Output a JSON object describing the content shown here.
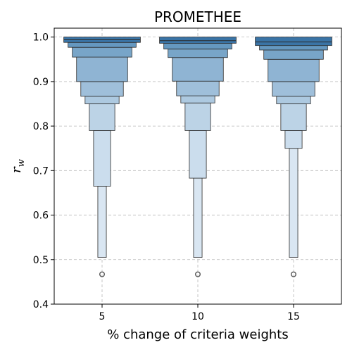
{
  "chart_data": {
    "type": "boxenplot",
    "title": "PROMETHEE",
    "xlabel": "% change of criteria weights",
    "ylabel_main": "r",
    "ylabel_sub": "w",
    "ylim": [
      0.4,
      1.02
    ],
    "yticks": [
      "0.4",
      "0.5",
      "0.6",
      "0.7",
      "0.8",
      "0.9",
      "1.0"
    ],
    "categories": [
      "5",
      "10",
      "15"
    ],
    "grid": true,
    "series": [
      {
        "category": "5",
        "median": 0.994,
        "boxes": [
          {
            "lo": 0.988,
            "hi": 1.0,
            "color": "#3a74a6"
          },
          {
            "lo": 0.977,
            "hi": 0.988,
            "color": "#6598c0"
          },
          {
            "lo": 0.955,
            "hi": 0.977,
            "color": "#78a5c8"
          },
          {
            "lo": 0.9,
            "hi": 0.955,
            "color": "#8fb4d3"
          },
          {
            "lo": 0.867,
            "hi": 0.9,
            "color": "#9fbfda"
          },
          {
            "lo": 0.85,
            "hi": 0.867,
            "color": "#adc9e0"
          },
          {
            "lo": 0.79,
            "hi": 0.85,
            "color": "#bcd3e6"
          },
          {
            "lo": 0.665,
            "hi": 0.79,
            "color": "#cbdded"
          },
          {
            "lo": 0.505,
            "hi": 0.665,
            "color": "#d9e6f2"
          }
        ],
        "outliers": [
          0.467
        ]
      },
      {
        "category": "10",
        "median": 0.992,
        "boxes": [
          {
            "lo": 0.986,
            "hi": 1.0,
            "color": "#3a74a6"
          },
          {
            "lo": 0.973,
            "hi": 0.986,
            "color": "#6598c0"
          },
          {
            "lo": 0.954,
            "hi": 0.973,
            "color": "#78a5c8"
          },
          {
            "lo": 0.901,
            "hi": 0.954,
            "color": "#8fb4d3"
          },
          {
            "lo": 0.868,
            "hi": 0.901,
            "color": "#9fbfda"
          },
          {
            "lo": 0.852,
            "hi": 0.868,
            "color": "#adc9e0"
          },
          {
            "lo": 0.79,
            "hi": 0.852,
            "color": "#bcd3e6"
          },
          {
            "lo": 0.683,
            "hi": 0.79,
            "color": "#cbdded"
          },
          {
            "lo": 0.505,
            "hi": 0.683,
            "color": "#d9e6f2"
          }
        ],
        "outliers": [
          0.467
        ]
      },
      {
        "category": "15",
        "median": 0.989,
        "boxes": [
          {
            "lo": 0.981,
            "hi": 1.0,
            "color": "#3a74a6"
          },
          {
            "lo": 0.971,
            "hi": 0.981,
            "color": "#6598c0"
          },
          {
            "lo": 0.95,
            "hi": 0.971,
            "color": "#78a5c8"
          },
          {
            "lo": 0.9,
            "hi": 0.95,
            "color": "#8fb4d3"
          },
          {
            "lo": 0.867,
            "hi": 0.9,
            "color": "#9fbfda"
          },
          {
            "lo": 0.85,
            "hi": 0.867,
            "color": "#adc9e0"
          },
          {
            "lo": 0.79,
            "hi": 0.85,
            "color": "#bcd3e6"
          },
          {
            "lo": 0.75,
            "hi": 0.79,
            "color": "#cbdded"
          },
          {
            "lo": 0.505,
            "hi": 0.75,
            "color": "#d9e6f2"
          }
        ],
        "outliers": [
          0.467
        ]
      }
    ]
  }
}
